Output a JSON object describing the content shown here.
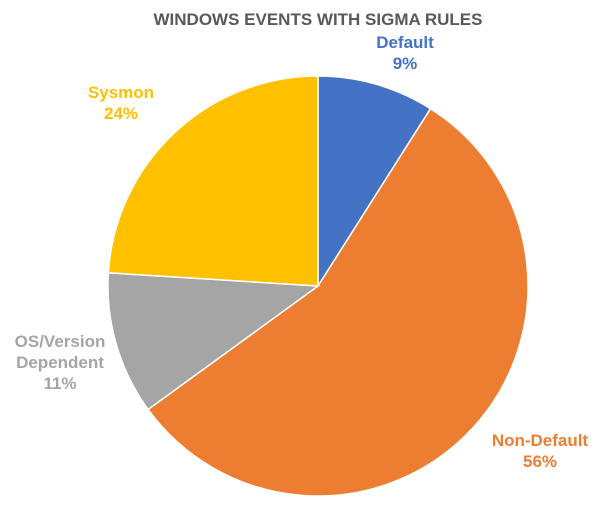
{
  "chart_data": {
    "type": "pie",
    "title": "WINDOWS EVENTS WITH SIGMA RULES",
    "slices": [
      {
        "label": "Default",
        "value": 9,
        "display": "9%",
        "color": "#4472C4"
      },
      {
        "label": "Non-Default",
        "value": 56,
        "display": "56%",
        "color": "#ED7D31"
      },
      {
        "label": "OS/Version Dependent",
        "value": 11,
        "display": "11%",
        "color": "#A5A5A5"
      },
      {
        "label": "Sysmon",
        "value": 24,
        "display": "24%",
        "color": "#FFC000"
      }
    ],
    "start_angle_deg": 0,
    "direction": "clockwise",
    "legend": "none"
  }
}
